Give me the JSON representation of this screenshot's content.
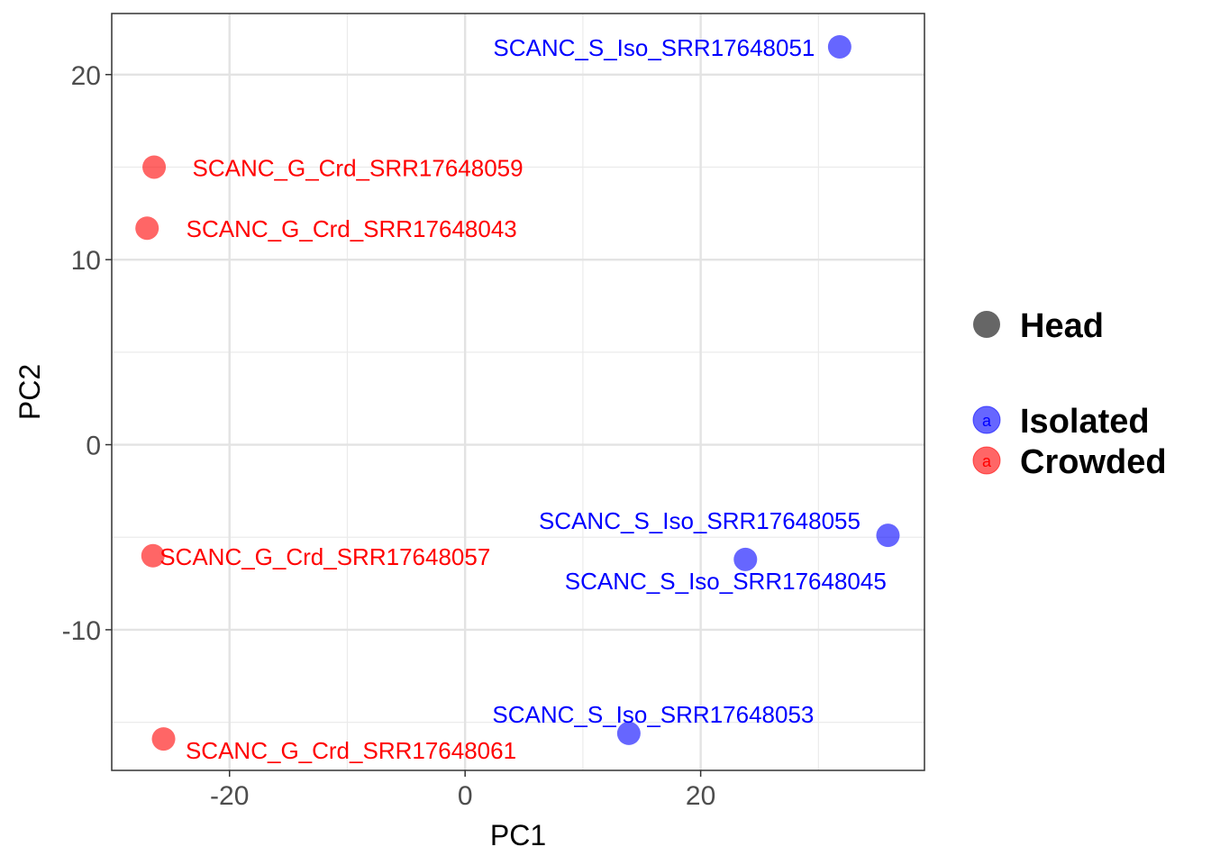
{
  "chart_data": {
    "type": "scatter",
    "title": "",
    "xlabel": "PC1",
    "ylabel": "PC2",
    "xlim": [
      -30,
      39
    ],
    "ylim": [
      -17.6,
      23.3
    ],
    "x_ticks": [
      -20,
      0,
      20
    ],
    "x_tick_labels": [
      "-20",
      "0",
      "20"
    ],
    "y_ticks": [
      -10,
      0,
      10,
      20
    ],
    "y_tick_labels": [
      "-10",
      "0",
      "10",
      "20"
    ],
    "grid": true,
    "legend": {
      "position": "right",
      "shape_title": "Head",
      "shape_color": "#666666",
      "entries": [
        {
          "name": "Isolated",
          "color": "#0000ff",
          "key_glyph": "a"
        },
        {
          "name": "Crowded",
          "color": "#ff0000",
          "key_glyph": "a"
        }
      ]
    },
    "series": [
      {
        "name": "Isolated",
        "color": "#0000ff",
        "points": [
          {
            "x": 31.8,
            "y": 21.5,
            "label": "SCANC_S_Iso_SRR17648051"
          },
          {
            "x": 35.9,
            "y": -4.9,
            "label": "SCANC_S_Iso_SRR17648055"
          },
          {
            "x": 23.8,
            "y": -6.2,
            "label": "SCANC_S_Iso_SRR17648045"
          },
          {
            "x": 13.9,
            "y": -15.6,
            "label": "SCANC_S_Iso_SRR17648053"
          }
        ]
      },
      {
        "name": "Crowded",
        "color": "#ff0000",
        "points": [
          {
            "x": -26.4,
            "y": 15.0,
            "label": "SCANC_G_Crd_SRR17648059"
          },
          {
            "x": -27.0,
            "y": 11.7,
            "label": "SCANC_G_Crd_SRR17648043"
          },
          {
            "x": -26.5,
            "y": -6.0,
            "label": "SCANC_G_Crd_SRR17648057"
          },
          {
            "x": -25.6,
            "y": -15.9,
            "label": "SCANC_G_Crd_SRR17648061"
          }
        ]
      }
    ]
  }
}
